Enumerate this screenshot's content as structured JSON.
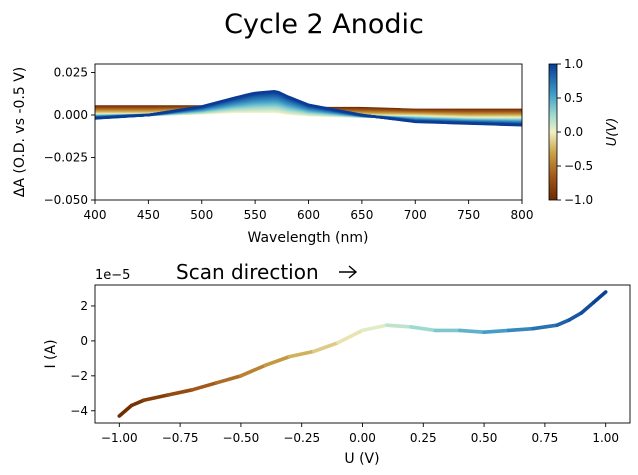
{
  "figure": {
    "title": "Cycle 2 Anodic"
  },
  "colormap": [
    {
      "t": 0.0,
      "color": "#6b2a00"
    },
    {
      "t": 0.18,
      "color": "#a4591a"
    },
    {
      "t": 0.35,
      "color": "#c9a447"
    },
    {
      "t": 0.5,
      "color": "#f1f0c4"
    },
    {
      "t": 0.63,
      "color": "#9ad9cf"
    },
    {
      "t": 0.78,
      "color": "#3f9cc8"
    },
    {
      "t": 1.0,
      "color": "#0a3c95"
    }
  ],
  "chart_data": [
    {
      "type": "line",
      "name": "spectra",
      "title": "",
      "xlabel": "Wavelength (nm)",
      "ylabel": "ΔA (O.D. vs -0.5 V)",
      "xlim": [
        400,
        800
      ],
      "ylim": [
        -0.05,
        0.03
      ],
      "xticks": [
        400,
        450,
        500,
        550,
        600,
        650,
        700,
        750,
        800
      ],
      "xtick_labels": [
        "400",
        "450",
        "500",
        "550",
        "600",
        "650",
        "700",
        "750",
        "800"
      ],
      "yticks": [
        -0.05,
        -0.025,
        0.0,
        0.025
      ],
      "ytick_labels": [
        "−0.050",
        "−0.025",
        "0.000",
        "0.025"
      ],
      "curve_count": 41,
      "curve_potential_range": [
        -1.0,
        1.0
      ],
      "wavelength": [
        400,
        450,
        500,
        530,
        550,
        570,
        580,
        600,
        650,
        700,
        750,
        800
      ],
      "deltaA_at_min_U": [
        0.005,
        0.005,
        0.005,
        0.005,
        0.005,
        0.005,
        0.005,
        0.004,
        0.004,
        0.003,
        0.003,
        0.003
      ],
      "deltaA_at_zero_U": [
        0.0,
        0.0,
        0.001,
        0.002,
        0.002,
        0.002,
        0.001,
        0.0,
        -0.001,
        -0.001,
        -0.002,
        -0.002
      ],
      "deltaA_at_max_U": [
        -0.002,
        0.0,
        0.005,
        0.01,
        0.013,
        0.014,
        0.011,
        0.006,
        0.0,
        -0.004,
        -0.005,
        -0.006
      ],
      "colorbar": {
        "label": "U(V)",
        "range": [
          -1.0,
          1.0
        ],
        "ticks": [
          -1.0,
          -0.5,
          0.0,
          0.5,
          1.0
        ],
        "tick_labels": [
          "−1.0",
          "−0.5",
          "0.0",
          "0.5",
          "1.0"
        ]
      }
    },
    {
      "type": "line",
      "name": "cyclic-voltammogram",
      "title": "",
      "annotation": "Scan direction",
      "xlabel": "U (V)",
      "ylabel": "I (A)",
      "y_offset_text": "1e−5",
      "xlim": [
        -1.1,
        1.1
      ],
      "ylim": [
        -4.7,
        3.2
      ],
      "xticks": [
        -1.0,
        -0.75,
        -0.5,
        -0.25,
        0.0,
        0.25,
        0.5,
        0.75,
        1.0
      ],
      "xtick_labels": [
        "−1.00",
        "−0.75",
        "−0.50",
        "−0.25",
        "0.00",
        "0.25",
        "0.50",
        "0.75",
        "1.00"
      ],
      "yticks": [
        -4,
        -2,
        0,
        2
      ],
      "ytick_labels": [
        "−4",
        "−2",
        "0",
        "2"
      ],
      "x": [
        -1.0,
        -0.95,
        -0.9,
        -0.8,
        -0.7,
        -0.6,
        -0.5,
        -0.4,
        -0.3,
        -0.2,
        -0.1,
        0.0,
        0.1,
        0.2,
        0.3,
        0.4,
        0.5,
        0.6,
        0.7,
        0.8,
        0.85,
        0.9,
        0.95,
        1.0
      ],
      "y": [
        -4.3,
        -3.7,
        -3.4,
        -3.1,
        -2.8,
        -2.4,
        -2.0,
        -1.4,
        -0.9,
        -0.6,
        -0.1,
        0.6,
        0.9,
        0.8,
        0.6,
        0.6,
        0.5,
        0.6,
        0.7,
        0.9,
        1.2,
        1.6,
        2.2,
        2.8
      ]
    }
  ]
}
